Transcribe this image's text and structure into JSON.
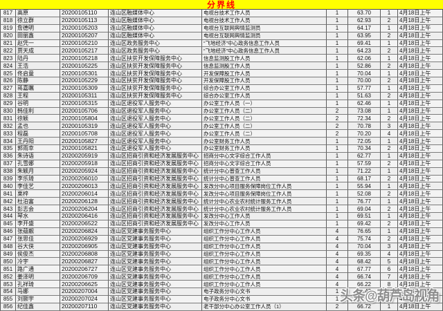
{
  "banner": {
    "title": "分界线",
    "bg_color": "#ffff00",
    "text_color": "#ff0000"
  },
  "watermark": {
    "text": "头条@葫芦岛视角"
  },
  "table": {
    "rows": [
      [
        "817",
        "高原",
        "20200105110",
        "连山区融媒体中心",
        "电视台技术工作人员",
        "1",
        "63.70",
        "1",
        "4月18日上午"
      ],
      [
        "818",
        "徐立群",
        "20200105113",
        "连山区融媒体中心",
        "电视台技术工作人员",
        "1",
        "62.93",
        "2",
        "4月18日上午"
      ],
      [
        "819",
        "詹德明",
        "20200105203",
        "连山区融媒体中心",
        "电视台互联网舆情监测员",
        "1",
        "64.17",
        "1",
        "4月18日上午"
      ],
      [
        "820",
        "田丽鑫",
        "20200105207",
        "连山区融媒体中心",
        "电视台互联网舆情监测员",
        "1",
        "63.95",
        "2",
        "4月18日上午"
      ],
      [
        "821",
        "赵凭一",
        "20200105210",
        "连山区政务服务中心",
        "“飞地经济”中心政务信息工作人员",
        "1",
        "69.41",
        "1",
        "4月18日上午"
      ],
      [
        "822",
        "贾天成",
        "20200105217",
        "连山区政务服务中心",
        "“飞地经济”中心政务信息工作人员",
        "1",
        "64.23",
        "2",
        "4月18日上午"
      ],
      [
        "823",
        "陆丹",
        "20200105218",
        "连山区扶贫开发保障服务中心",
        "信息监测股工作人员",
        "1",
        "62.06",
        "1",
        "4月18日上午"
      ],
      [
        "824",
        "王浩",
        "20200105225",
        "连山区扶贫开发保障服务中心",
        "信息监测股工作人员",
        "1",
        "52.86",
        "2",
        "4月18日上午"
      ],
      [
        "825",
        "佟启童",
        "20200105301",
        "连山区扶贫开发保障服务中心",
        "开发保障股工作人员",
        "1",
        "70.04",
        "1",
        "4月18日上午"
      ],
      [
        "826",
        "陈静",
        "20200105229",
        "连山区扶贫开发保障服务中心",
        "开发保障股工作人员",
        "1",
        "70.00",
        "2",
        "4月18日上午"
      ],
      [
        "827",
        "蒋嘉瞩",
        "20200105309",
        "连山区扶贫开发保障服务中心",
        "综合办公室工作人员",
        "1",
        "57.77",
        "1",
        "4月18日上午"
      ],
      [
        "828",
        "王程",
        "20200105311",
        "连山区扶贫开发保障服务中心",
        "综合办公室工作人员",
        "1",
        "51.63",
        "2",
        "4月18日上午"
      ],
      [
        "829",
        "谷明",
        "20200105315",
        "连山区退役军人服务中心",
        "办公室工作人员（一）",
        "1",
        "62.46",
        "1",
        "4月18日上午"
      ],
      [
        "830",
        "韩佳利",
        "20200105706",
        "连山区退役军人服务中心",
        "办公室工作人员（二）",
        "2",
        "73.08",
        "1",
        "4月18日上午"
      ],
      [
        "831",
        "徐颖",
        "20200105804",
        "连山区退役军人服务中心",
        "办公室工作人员（二）",
        "2",
        "72.34",
        "2",
        "4月18日上午"
      ],
      [
        "832",
        "孟也",
        "20200105319",
        "连山区退役军人服务中心",
        "办公室工作人员（二）",
        "2",
        "70.78",
        "3",
        "4月18日上午"
      ],
      [
        "833",
        "程磊",
        "20200105708",
        "连山区退役军人服务中心",
        "办公室工作人员（二）",
        "2",
        "70.20",
        "4",
        "4月18日上午"
      ],
      [
        "834",
        "王丹阳",
        "20200105827",
        "连山区退役军人服务中心",
        "办公室财务工作人员",
        "1",
        "72.05",
        "1",
        "4月18日上午"
      ],
      [
        "835",
        "郭雨幸",
        "20200105821",
        "连山区退役军人服务中心",
        "办公室财务工作人员",
        "1",
        "70.34",
        "2",
        "4月18日上午"
      ],
      [
        "836",
        "朱诗语",
        "20200205919",
        "连山区招商引资和经济发展服务中心",
        "招商分中心文字综合工作人员",
        "1",
        "62.77",
        "1",
        "4月18日上午"
      ],
      [
        "837",
        "孔雪娜",
        "20200205918",
        "连山区招商引资和经济发展服务中心",
        "招商分中心文字综合工作人员",
        "1",
        "57.59",
        "2",
        "4月18日上午"
      ],
      [
        "838",
        "朱颖月",
        "20200205924",
        "连山区招商引资和经济发展服务中心",
        "统计分中心普查工作人员",
        "1",
        "71.22",
        "1",
        "4月18日上午"
      ],
      [
        "839",
        "李乐琦",
        "20200206010",
        "连山区招商引资和经济发展服务中心",
        "统计分中心普查工作人员",
        "1",
        "68.17",
        "2",
        "4月18日上午"
      ],
      [
        "840",
        "李佳艺",
        "20200206013",
        "连山区招商引资和经济发展服务中心",
        "发改分中心项目服务保障岗位工作人员",
        "1",
        "55.94",
        "1",
        "4月18日上午"
      ],
      [
        "841",
        "栗梓",
        "20200206014",
        "连山区招商引资和经济发展服务中心",
        "发改分中心项目服务保障岗位工作人员",
        "1",
        "52.08",
        "2",
        "4月18日上午"
      ],
      [
        "842",
        "杜泊富",
        "20200206128",
        "连山区招商引资和经济发展服务中心",
        "统计分中心农业农村统计服务工作人员",
        "1",
        "76.77",
        "1",
        "4月18日上午"
      ],
      [
        "843",
        "彭志会",
        "20200206204",
        "连山区招商引资和经济发展服务中心",
        "统计分中心农业农村统计服务工作人员",
        "1",
        "69.04",
        "2",
        "4月18日上午"
      ],
      [
        "844",
        "琴水",
        "20200206416",
        "连山区招商引资和经济发展服务中心",
        "发改分中心工作人员",
        "1",
        "69.51",
        "1",
        "4月18日上午"
      ],
      [
        "845",
        "李开盛",
        "20200206522",
        "连山区招商引资和经济发展服务中心",
        "发改分中心工作人员",
        "1",
        "69.42",
        "2",
        "4月18日上午"
      ],
      [
        "846",
        "张蕴靓",
        "20200206824",
        "连山区党建事务服务中心",
        "组织工作分中心工作人员",
        "4",
        "76.65",
        "1",
        "4月18日上午"
      ],
      [
        "847",
        "张思佳",
        "20200206929",
        "连山区党建事务服务中心",
        "组织工作分中心工作人员",
        "4",
        "75.74",
        "2",
        "4月18日上午"
      ],
      [
        "848",
        "谷大侠",
        "20200206905",
        "连山区党建事务服务中心",
        "组织工作分中心工作人员",
        "4",
        "70.04",
        "3",
        "4月18日上午"
      ],
      [
        "849",
        "侯俊杰",
        "20200206808",
        "连山区党建事务服务中心",
        "组织工作分中心工作人员",
        "4",
        "69.35",
        "4",
        "4月18日上午"
      ],
      [
        "850",
        "冷宇",
        "20200206827",
        "连山区党建事务服务中心",
        "组织工作分中心工作人员",
        "4",
        "68.42",
        "5",
        "4月18日上午"
      ],
      [
        "851",
        "路广通",
        "20200206727",
        "连山区党建事务服务中心",
        "组织工作分中心工作人员",
        "4",
        "67.77",
        "6",
        "4月18日上午"
      ],
      [
        "852",
        "姜泽明",
        "20200206709",
        "连山区党建事务服务中心",
        "组织工作分中心工作人员",
        "4",
        "66.74",
        "7",
        "4月18日上午"
      ],
      [
        "853",
        "孔祥琦",
        "20200206625",
        "连山区党建事务服务中心",
        "组织工作分中心工作人员",
        "4",
        "66.22",
        "8",
        "4月18日上午"
      ],
      [
        "854",
        "马娜",
        "20200207004",
        "连山区党建事务服务中心",
        "电子政务分中心文书",
        "1",
        "74.42",
        "1",
        "4月18日上午"
      ],
      [
        "855",
        "刘颢宇",
        "20200207024",
        "连山区党建事务服务中心",
        "电子政务分中心文书",
        "1",
        "",
        "",
        "4月18日上午"
      ],
      [
        "856",
        "纪佳鑫",
        "20200207110",
        "连山区党建事务服务中心",
        "老干部分中心办公室工作人员（1）",
        "2",
        "66.72",
        "1",
        "4月18日上午"
      ]
    ]
  }
}
